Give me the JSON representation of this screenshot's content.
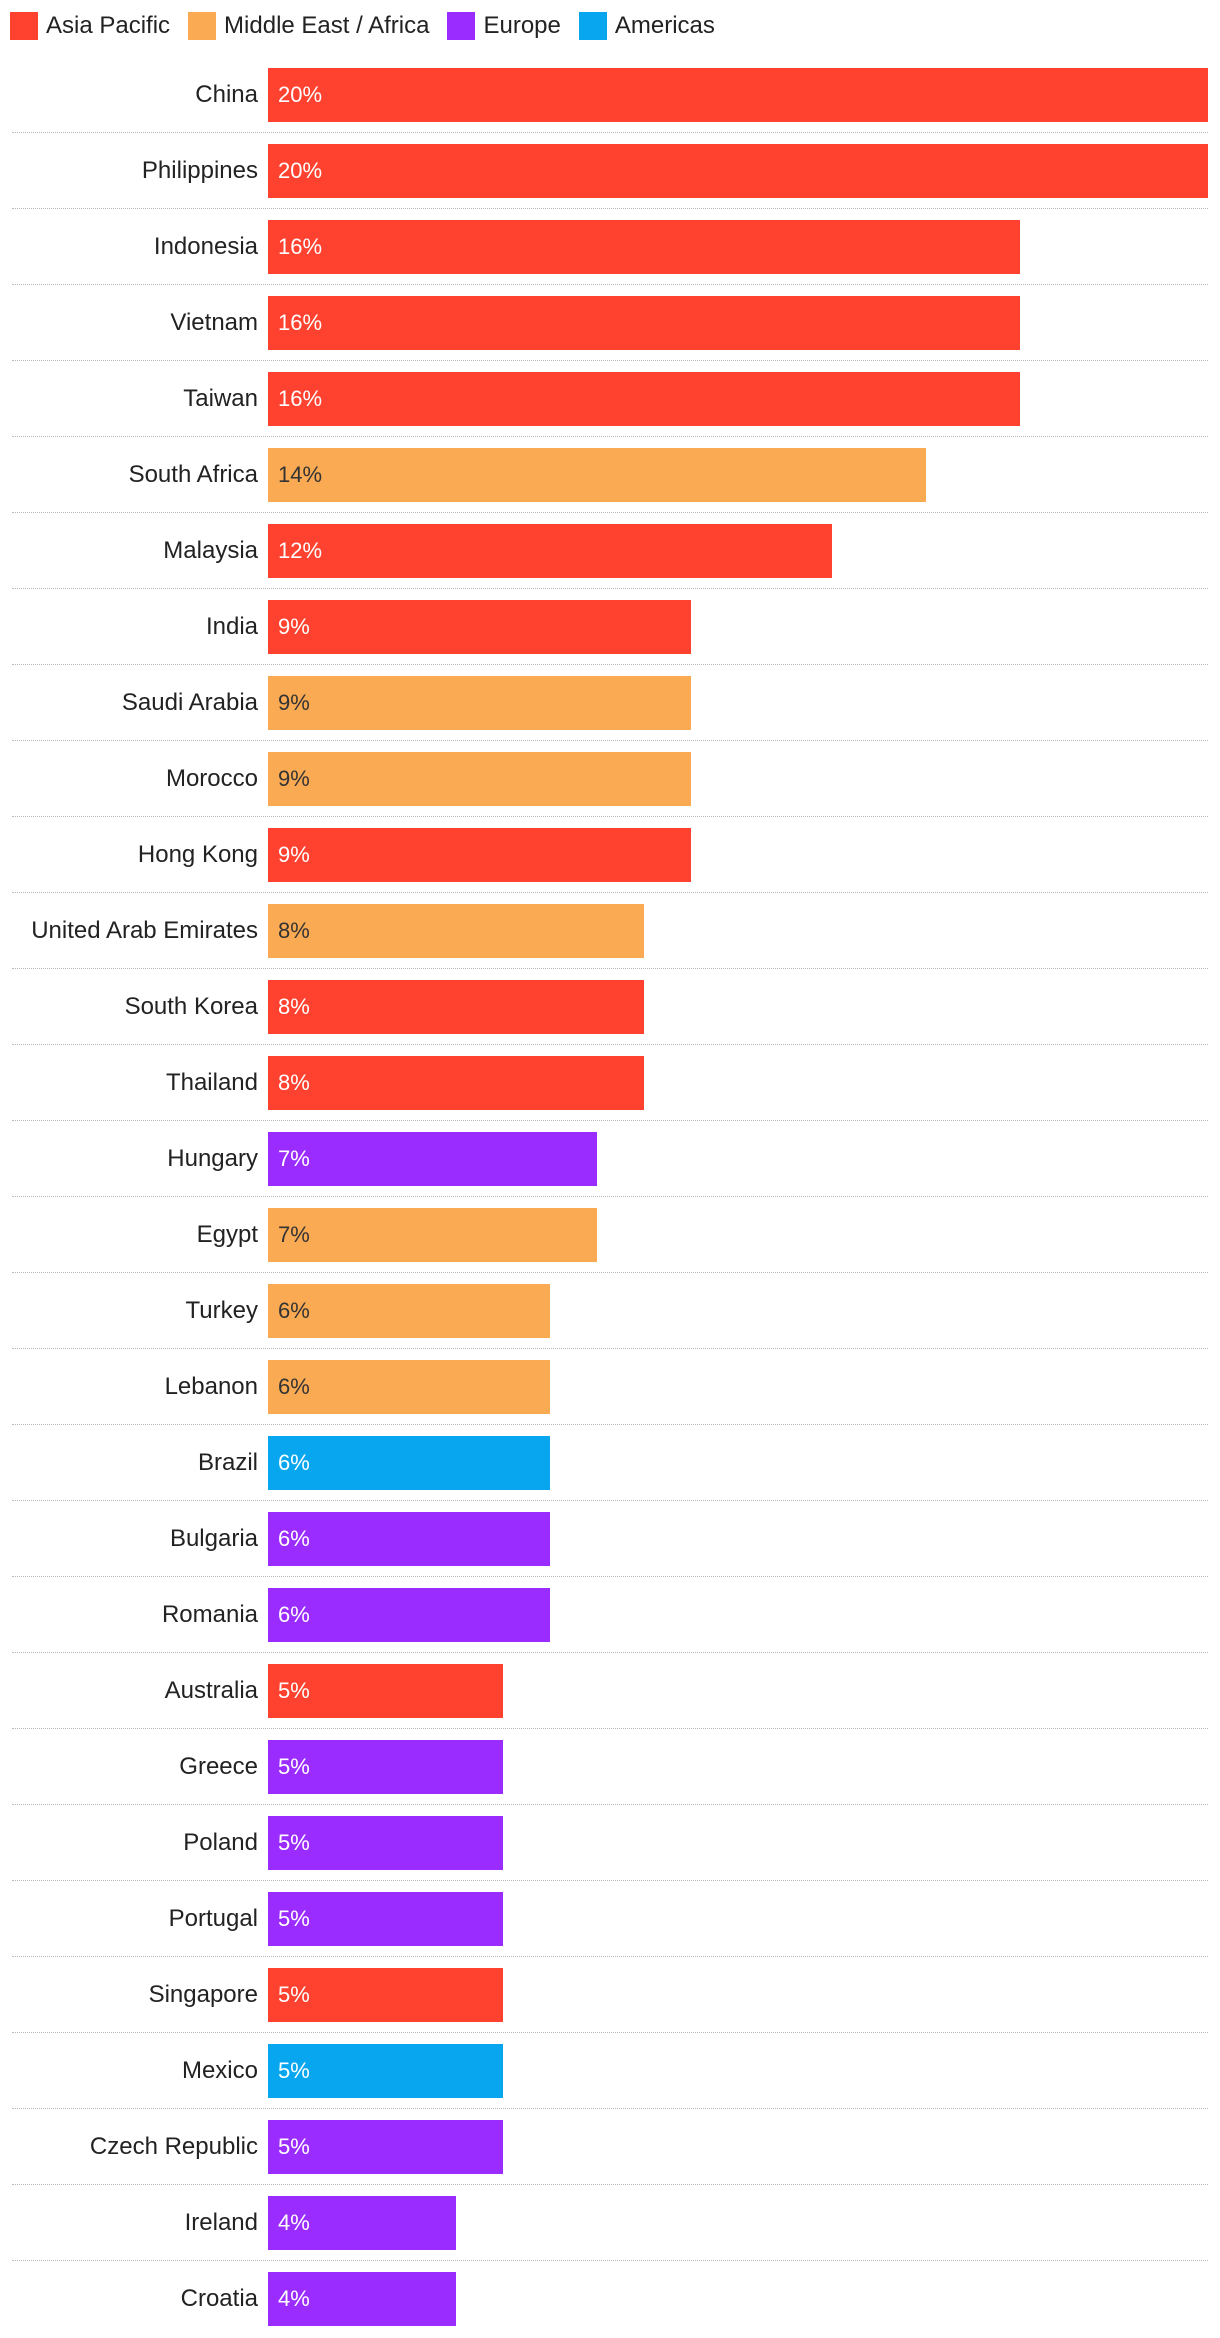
{
  "colors": {
    "asia_pacific": "#ff4230",
    "middle_east_africa": "#f9aa53",
    "europe": "#9b2cff",
    "americas": "#08a6ef"
  },
  "legend": [
    {
      "label": "Asia Pacific",
      "color": "#ff4230"
    },
    {
      "label": "Middle East / Africa",
      "color": "#f9aa53"
    },
    {
      "label": "Europe",
      "color": "#9b2cff"
    },
    {
      "label": "Americas",
      "color": "#08a6ef"
    }
  ],
  "chart_data": {
    "type": "bar",
    "orientation": "horizontal",
    "grid": false,
    "legend_position": "top-left",
    "xlim": [
      0,
      20
    ],
    "categories": [
      "China",
      "Philippines",
      "Indonesia",
      "Vietnam",
      "Taiwan",
      "South Africa",
      "Malaysia",
      "India",
      "Saudi Arabia",
      "Morocco",
      "Hong Kong",
      "United Arab Emirates",
      "South Korea",
      "Thailand",
      "Hungary",
      "Egypt",
      "Turkey",
      "Lebanon",
      "Brazil",
      "Bulgaria",
      "Romania",
      "Australia",
      "Greece",
      "Poland",
      "Portugal",
      "Singapore",
      "Mexico",
      "Czech Republic",
      "Ireland",
      "Croatia"
    ],
    "values": [
      20,
      20,
      16,
      16,
      16,
      14,
      12,
      9,
      9,
      9,
      9,
      8,
      8,
      8,
      7,
      7,
      6,
      6,
      6,
      6,
      6,
      5,
      5,
      5,
      5,
      5,
      5,
      5,
      4,
      4
    ],
    "value_labels": [
      "20%",
      "20%",
      "16%",
      "16%",
      "16%",
      "14%",
      "12%",
      "9%",
      "9%",
      "9%",
      "9%",
      "8%",
      "8%",
      "8%",
      "7%",
      "7%",
      "6%",
      "6%",
      "6%",
      "6%",
      "6%",
      "5%",
      "5%",
      "5%",
      "5%",
      "5%",
      "5%",
      "5%",
      "4%",
      "4%"
    ],
    "regions": [
      "Asia Pacific",
      "Asia Pacific",
      "Asia Pacific",
      "Asia Pacific",
      "Asia Pacific",
      "Middle East / Africa",
      "Asia Pacific",
      "Asia Pacific",
      "Middle East / Africa",
      "Middle East / Africa",
      "Asia Pacific",
      "Middle East / Africa",
      "Asia Pacific",
      "Asia Pacific",
      "Europe",
      "Middle East / Africa",
      "Middle East / Africa",
      "Middle East / Africa",
      "Americas",
      "Europe",
      "Europe",
      "Asia Pacific",
      "Europe",
      "Europe",
      "Europe",
      "Asia Pacific",
      "Americas",
      "Europe",
      "Europe",
      "Europe"
    ]
  }
}
